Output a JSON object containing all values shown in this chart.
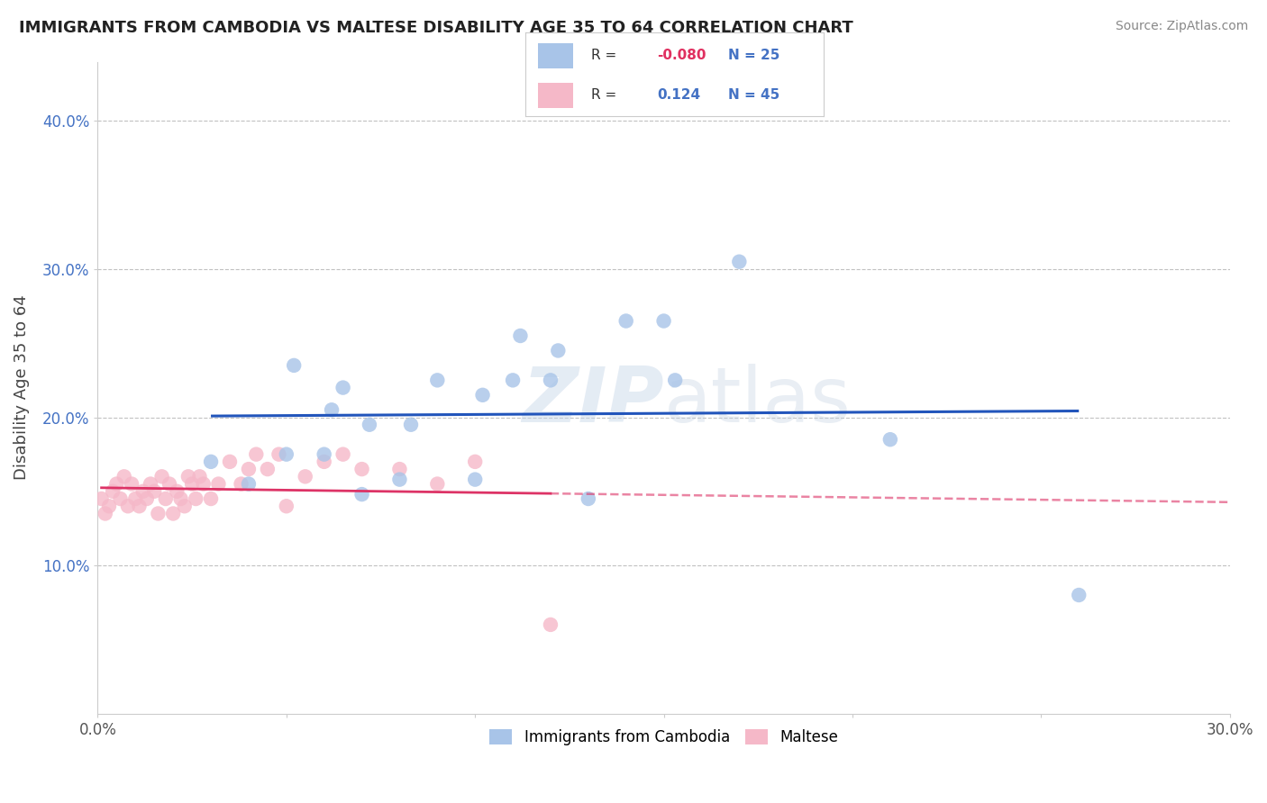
{
  "title": "IMMIGRANTS FROM CAMBODIA VS MALTESE DISABILITY AGE 35 TO 64 CORRELATION CHART",
  "source": "Source: ZipAtlas.com",
  "ylabel": "Disability Age 35 to 64",
  "xlim": [
    0.0,
    0.3
  ],
  "ylim": [
    0.0,
    0.44
  ],
  "x_ticks": [
    0.0,
    0.05,
    0.1,
    0.15,
    0.2,
    0.25,
    0.3
  ],
  "x_tick_labels": [
    "0.0%",
    "",
    "",
    "",
    "",
    "",
    "30.0%"
  ],
  "y_ticks": [
    0.1,
    0.2,
    0.3,
    0.4
  ],
  "y_tick_labels": [
    "10.0%",
    "20.0%",
    "30.0%",
    "40.0%"
  ],
  "r_cambodia": "-0.080",
  "n_cambodia": "25",
  "r_maltese": "0.124",
  "n_maltese": "45",
  "color_cambodia": "#a8c4e8",
  "color_maltese": "#f5b8c8",
  "line_color_cambodia": "#2255bb",
  "line_color_maltese": "#dd3366",
  "watermark_zip": "ZIP",
  "watermark_atlas": "atlas",
  "grid_color": "#bbbbbb",
  "cambodia_x": [
    0.03,
    0.04,
    0.05,
    0.052,
    0.06,
    0.062,
    0.065,
    0.07,
    0.072,
    0.08,
    0.083,
    0.09,
    0.1,
    0.102,
    0.11,
    0.112,
    0.12,
    0.122,
    0.13,
    0.14,
    0.15,
    0.153,
    0.17,
    0.21,
    0.26
  ],
  "cambodia_y": [
    0.17,
    0.155,
    0.175,
    0.235,
    0.175,
    0.205,
    0.22,
    0.148,
    0.195,
    0.158,
    0.195,
    0.225,
    0.158,
    0.215,
    0.225,
    0.255,
    0.225,
    0.245,
    0.145,
    0.265,
    0.265,
    0.225,
    0.305,
    0.185,
    0.08
  ],
  "maltese_x": [
    0.001,
    0.002,
    0.003,
    0.004,
    0.005,
    0.006,
    0.007,
    0.008,
    0.009,
    0.01,
    0.011,
    0.012,
    0.013,
    0.014,
    0.015,
    0.016,
    0.017,
    0.018,
    0.019,
    0.02,
    0.021,
    0.022,
    0.023,
    0.024,
    0.025,
    0.026,
    0.027,
    0.028,
    0.03,
    0.032,
    0.035,
    0.038,
    0.04,
    0.042,
    0.045,
    0.048,
    0.05,
    0.055,
    0.06,
    0.065,
    0.07,
    0.08,
    0.09,
    0.1,
    0.12
  ],
  "maltese_y": [
    0.145,
    0.135,
    0.14,
    0.15,
    0.155,
    0.145,
    0.16,
    0.14,
    0.155,
    0.145,
    0.14,
    0.15,
    0.145,
    0.155,
    0.15,
    0.135,
    0.16,
    0.145,
    0.155,
    0.135,
    0.15,
    0.145,
    0.14,
    0.16,
    0.155,
    0.145,
    0.16,
    0.155,
    0.145,
    0.155,
    0.17,
    0.155,
    0.165,
    0.175,
    0.165,
    0.175,
    0.14,
    0.16,
    0.17,
    0.175,
    0.165,
    0.165,
    0.155,
    0.17,
    0.06
  ]
}
